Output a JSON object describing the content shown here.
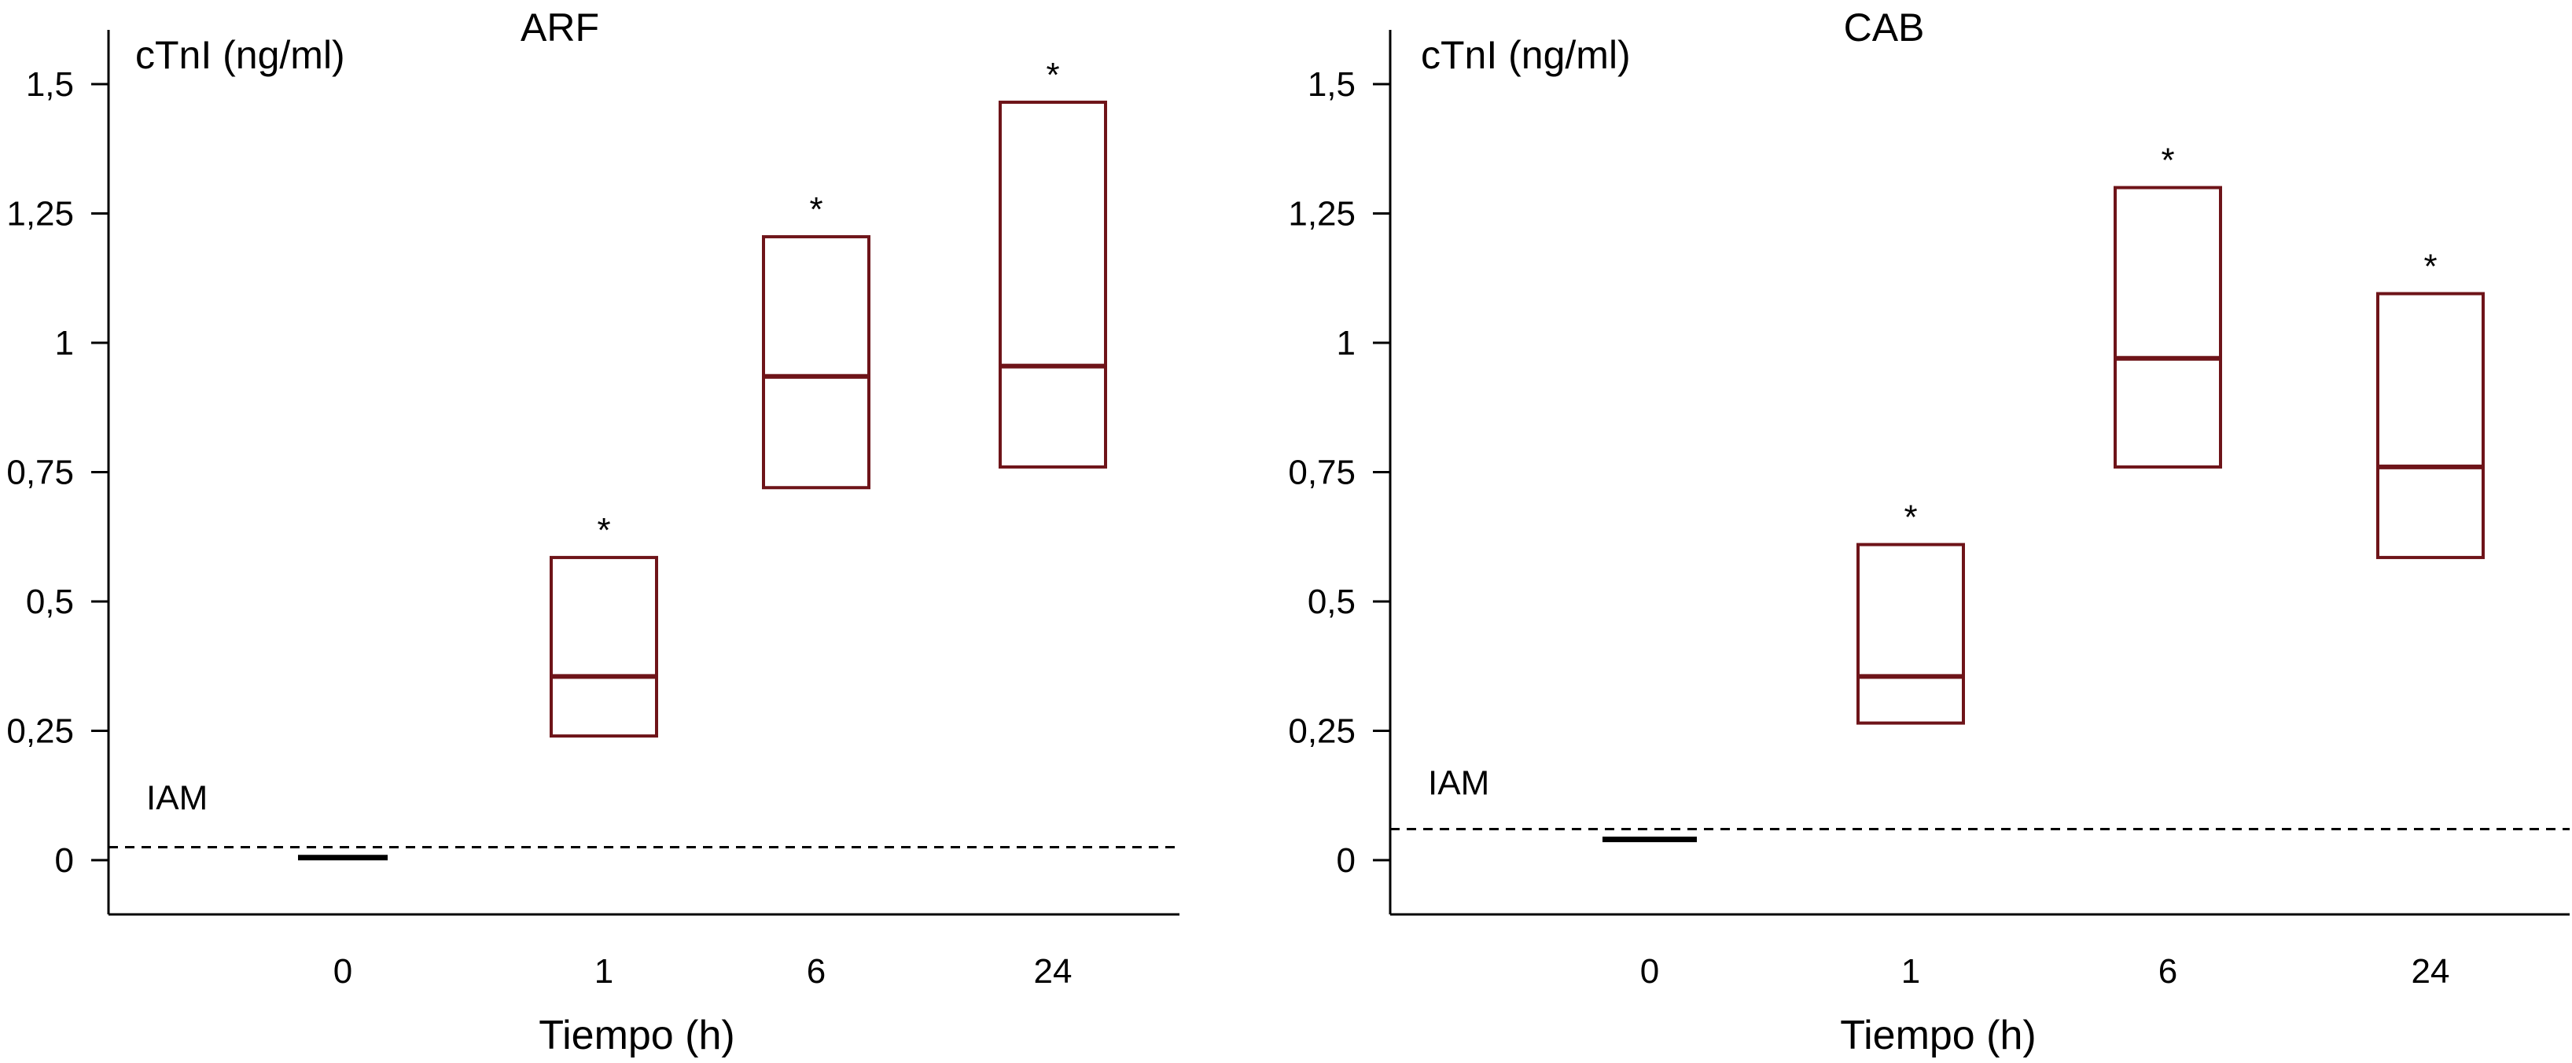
{
  "colors": {
    "box": "#6e1419",
    "axis": "#000000",
    "reference": "#000000"
  },
  "chart_data": [
    {
      "type": "box",
      "title": "ARF",
      "ylabel": "cTnI (ng/ml)",
      "xlabel": "Tiempo (h)",
      "categories": [
        "0",
        "1",
        "6",
        "24"
      ],
      "ylim": [
        -0.1,
        1.6
      ],
      "yticks": [
        0,
        0.25,
        0.5,
        0.75,
        1,
        1.25,
        1.5
      ],
      "ytick_labels": [
        "0",
        "0,25",
        "0,5",
        "0,75",
        "1",
        "1,25",
        "1,5"
      ],
      "reference_line": {
        "label": "IAM",
        "value": 0.025
      },
      "grid": false,
      "boxes": [
        {
          "category": "0",
          "median": 0.005,
          "q1": null,
          "q3": null,
          "significant": false
        },
        {
          "category": "1",
          "median": 0.355,
          "q1": 0.24,
          "q3": 0.585,
          "significant": true
        },
        {
          "category": "6",
          "median": 0.935,
          "q1": 0.72,
          "q3": 1.205,
          "significant": true
        },
        {
          "category": "24",
          "median": 0.955,
          "q1": 0.76,
          "q3": 1.465,
          "significant": true
        }
      ],
      "significance_marker": "*"
    },
    {
      "type": "box",
      "title": "CAB",
      "ylabel": "cTnI (ng/ml)",
      "xlabel": "Tiempo (h)",
      "categories": [
        "0",
        "1",
        "6",
        "24"
      ],
      "ylim": [
        -0.1,
        1.6
      ],
      "yticks": [
        0,
        0.25,
        0.5,
        0.75,
        1,
        1.25,
        1.5
      ],
      "ytick_labels": [
        "0",
        "0,25",
        "0,5",
        "0,75",
        "1",
        "1,25",
        "1,5"
      ],
      "reference_line": {
        "label": "IAM",
        "value": 0.06
      },
      "grid": false,
      "boxes": [
        {
          "category": "0",
          "median": 0.04,
          "q1": null,
          "q3": null,
          "significant": false
        },
        {
          "category": "1",
          "median": 0.355,
          "q1": 0.265,
          "q3": 0.61,
          "significant": true
        },
        {
          "category": "6",
          "median": 0.97,
          "q1": 0.76,
          "q3": 1.3,
          "significant": true
        },
        {
          "category": "24",
          "median": 0.76,
          "q1": 0.585,
          "q3": 1.095,
          "significant": true
        }
      ],
      "significance_marker": "*"
    }
  ]
}
